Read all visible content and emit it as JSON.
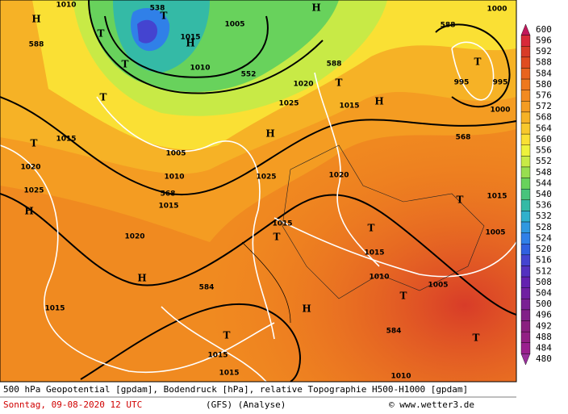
{
  "map": {
    "labels": [
      "538",
      "T",
      "T",
      "1015",
      "H",
      "1005",
      "588",
      "T",
      "1010",
      "552",
      "588",
      "T",
      "1020",
      "1025",
      "1015",
      "H",
      "T",
      "1010",
      "H",
      "T",
      "1015",
      "1005",
      "1010",
      "568",
      "1015",
      "1020",
      "584",
      "1020",
      "1025",
      "H",
      "1020",
      "H",
      "1025",
      "1015",
      "T",
      "H",
      "1015",
      "T",
      "1015",
      "1010",
      "584",
      "1005",
      "T",
      "T",
      "1015",
      "1005",
      "588",
      "T",
      "995",
      "995",
      "1000",
      "1000",
      "568",
      "1010",
      "1015",
      "1015",
      "H",
      "T",
      "T",
      "H"
    ]
  },
  "legend": {
    "levels": [
      600,
      596,
      592,
      588,
      584,
      580,
      576,
      572,
      568,
      564,
      560,
      556,
      552,
      548,
      544,
      540,
      536,
      532,
      528,
      524,
      520,
      516,
      512,
      508,
      504,
      500,
      496,
      492,
      488,
      484,
      480
    ],
    "colors": [
      "#c2185b",
      "#d82a3a",
      "#d83c28",
      "#e04c20",
      "#e8641e",
      "#ee781e",
      "#f28a20",
      "#f49c22",
      "#f6b226",
      "#f8c82c",
      "#fae034",
      "#eef23c",
      "#c8ea46",
      "#98de50",
      "#68d25c",
      "#48c47c",
      "#34baa6",
      "#30b0cc",
      "#3098e0",
      "#3080e8",
      "#3060e0",
      "#4444d0",
      "#5432c0",
      "#6422b0",
      "#7020a2",
      "#7a2094",
      "#822088",
      "#8a2080",
      "#922084",
      "#9a208e",
      "#9a309c"
    ]
  },
  "footer": {
    "line1": "500 hPa Geopotential [gpdam], Bodendruck [hPa], relative Topographie H500-H1000 [gpdam]",
    "date": "Sonntag, 09-08-2020  12 UTC",
    "model": "(GFS)  (Analyse)",
    "credit": "© www.wetter3.de"
  }
}
